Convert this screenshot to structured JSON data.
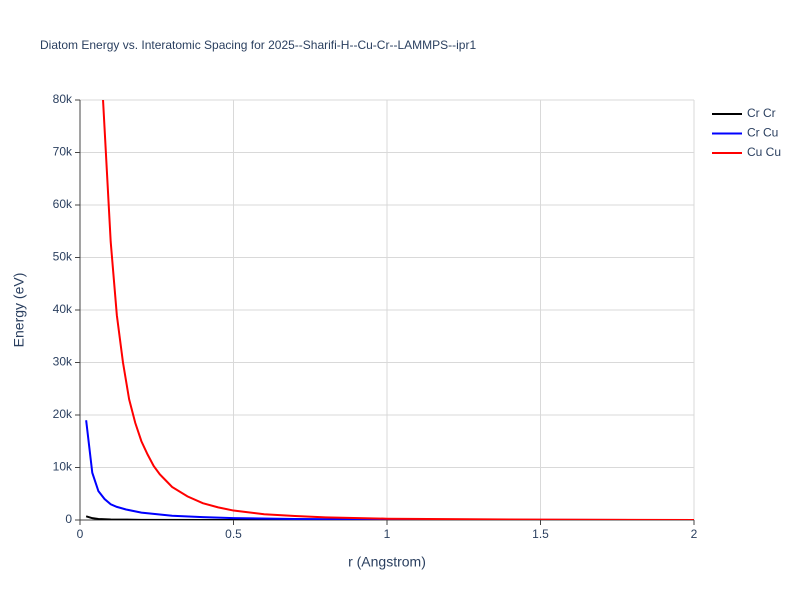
{
  "chart_data": {
    "type": "line",
    "title": "Diatom Energy vs. Interatomic Spacing for 2025--Sharifi-H--Cu-Cr--LAMMPS--ipr1",
    "x_label": "r (Angstrom)",
    "y_label": "Energy (eV)",
    "xlim": [
      0,
      2
    ],
    "ylim": [
      0,
      80000
    ],
    "xticks": [
      0,
      0.5,
      1,
      1.5,
      2
    ],
    "yticks": [
      0,
      {
        "value": 10000,
        "label": "10k"
      },
      {
        "value": 20000,
        "label": "20k"
      },
      {
        "value": 30000,
        "label": "30k"
      },
      {
        "value": 40000,
        "label": "40k"
      },
      {
        "value": 50000,
        "label": "50k"
      },
      {
        "value": 60000,
        "label": "60k"
      },
      {
        "value": 70000,
        "label": "70k"
      },
      {
        "value": 80000,
        "label": "80k"
      }
    ],
    "grid": true,
    "legend": "top-right",
    "series": [
      {
        "name": "Cr Cr",
        "color": "#000000",
        "x": [
          0.02,
          0.04,
          0.06,
          0.1,
          0.2,
          0.5,
          1,
          2
        ],
        "values": [
          700,
          350,
          200,
          100,
          30,
          5,
          0,
          0
        ]
      },
      {
        "name": "Cr Cu",
        "color": "#0000ff",
        "x": [
          0.02,
          0.04,
          0.06,
          0.08,
          0.1,
          0.12,
          0.15,
          0.2,
          0.3,
          0.4,
          0.5,
          0.7,
          1,
          1.5,
          2
        ],
        "values": [
          19000,
          9000,
          5500,
          4000,
          3000,
          2500,
          2000,
          1400,
          800,
          550,
          350,
          200,
          80,
          20,
          5
        ]
      },
      {
        "name": "Cu Cu",
        "color": "#ff0000",
        "x": [
          0.075,
          0.1,
          0.12,
          0.14,
          0.16,
          0.18,
          0.2,
          0.22,
          0.24,
          0.26,
          0.28,
          0.3,
          0.35,
          0.4,
          0.45,
          0.5,
          0.6,
          0.7,
          0.8,
          1,
          1.5,
          2
        ],
        "values": [
          80000,
          53000,
          39000,
          30000,
          23000,
          18500,
          15000,
          12500,
          10300,
          8700,
          7500,
          6300,
          4500,
          3200,
          2400,
          1800,
          1100,
          750,
          500,
          250,
          60,
          10
        ]
      }
    ]
  }
}
